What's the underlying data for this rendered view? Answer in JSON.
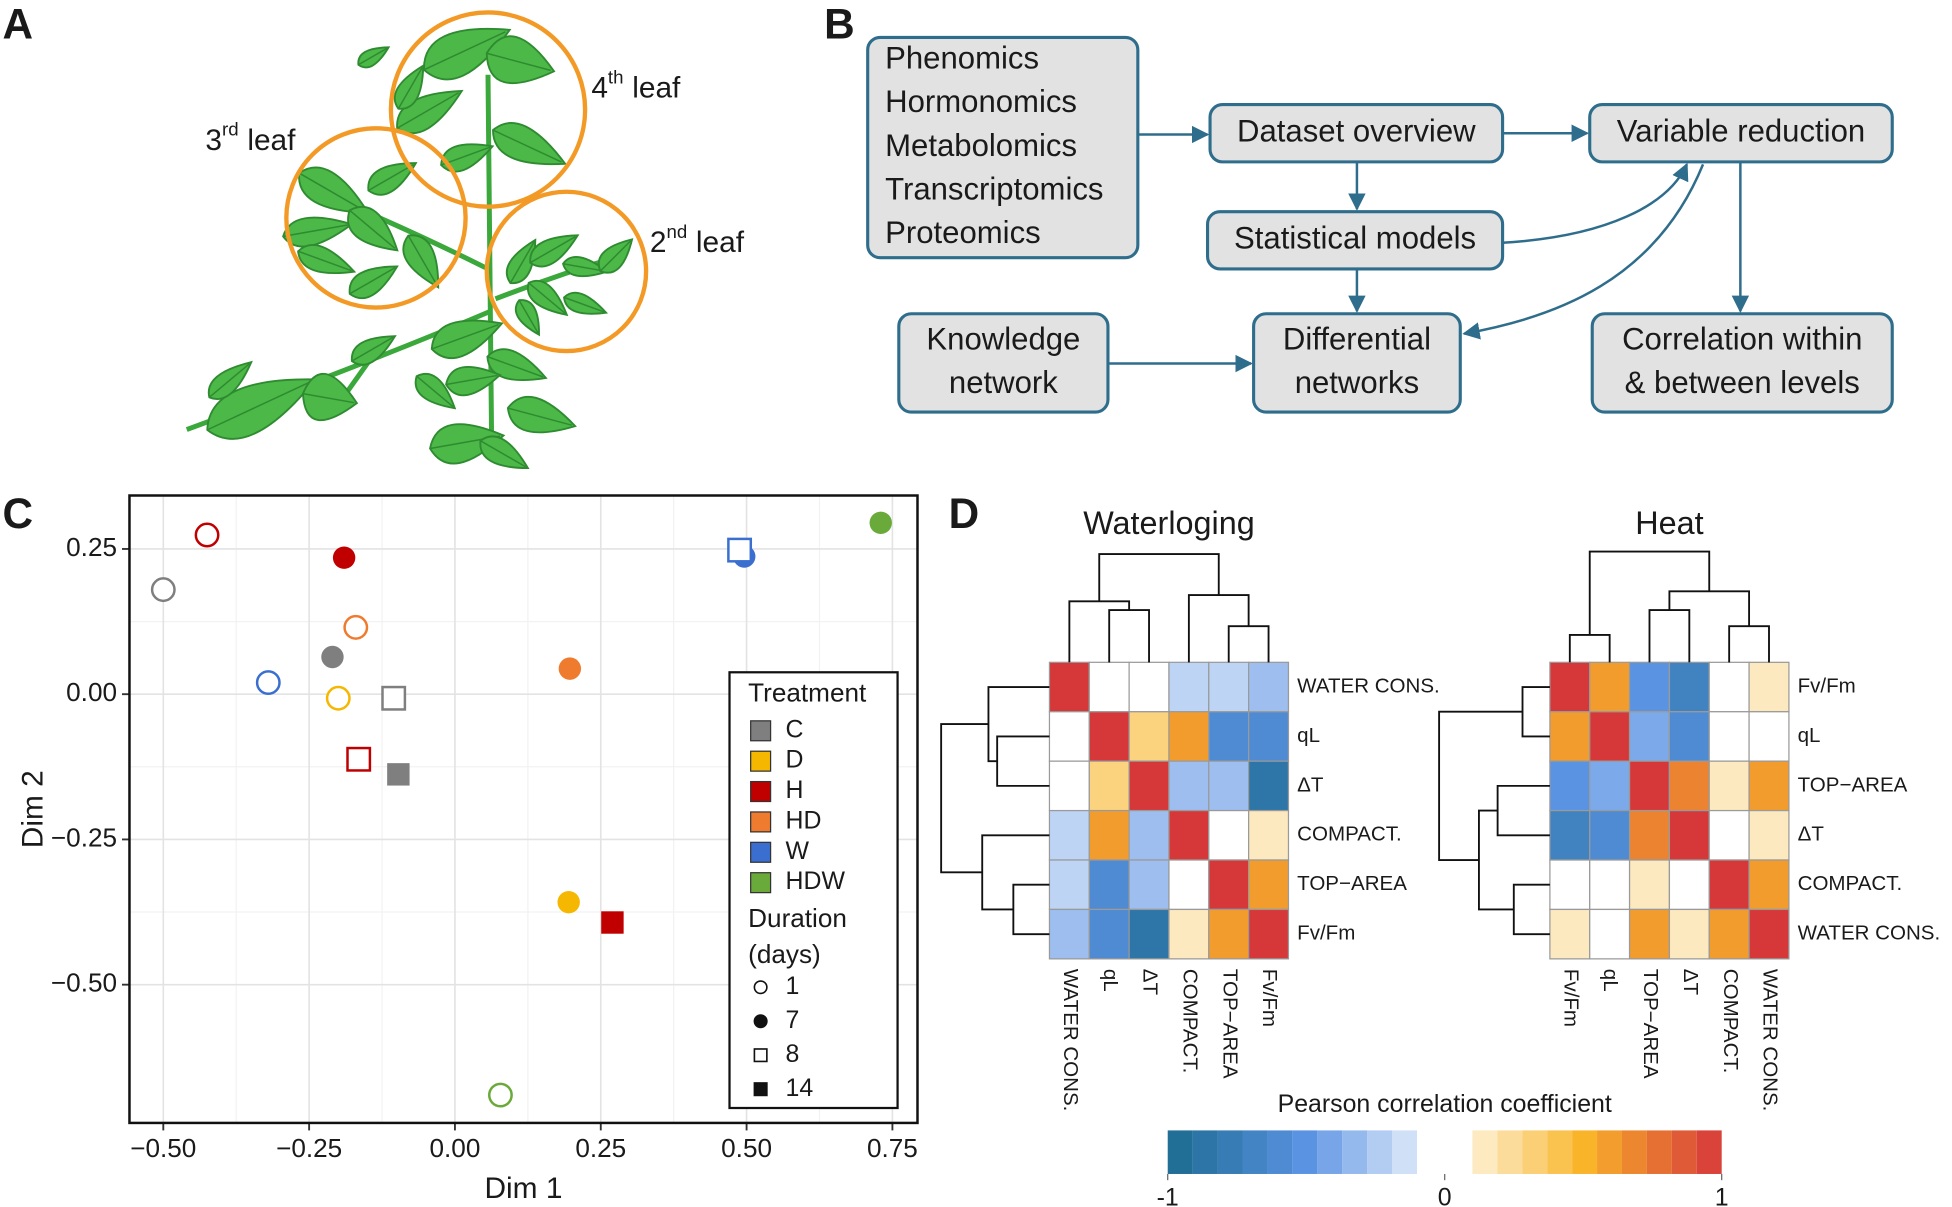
{
  "panel_labels": [
    "A",
    "B",
    "C",
    "D"
  ],
  "plant": {
    "leaf_labels": [
      {
        "number": "4",
        "suffix": "th",
        "word": "leaf"
      },
      {
        "number": "3",
        "suffix": "rd",
        "word": "leaf"
      },
      {
        "number": "2",
        "suffix": "nd",
        "word": "leaf"
      }
    ]
  },
  "flowchart": {
    "nodes": [
      {
        "lines": [
          "Phenomics",
          "Hormonomics",
          "Metabolomics",
          "Transcriptomics",
          "Proteomics"
        ]
      },
      {
        "lines": [
          "Dataset overview"
        ]
      },
      {
        "lines": [
          "Variable reduction"
        ]
      },
      {
        "lines": [
          "Statistical models"
        ]
      },
      {
        "lines": [
          "Knowledge",
          "network"
        ]
      },
      {
        "lines": [
          "Differential",
          "networks"
        ]
      },
      {
        "lines": [
          "Correlation within",
          "& between levels"
        ]
      }
    ]
  },
  "chart_data": [
    {
      "type": "scatter",
      "x_label": "Dim 1",
      "y_label": "Dim 2",
      "xlim": [
        -0.558,
        0.793
      ],
      "ylim": [
        -0.738,
        0.342
      ],
      "xticks": [
        {
          "value": -0.5,
          "label": "−0.50"
        },
        {
          "value": -0.25,
          "label": "−0.25"
        },
        {
          "value": 0,
          "label": "0.00"
        },
        {
          "value": 0.25,
          "label": "0.25"
        },
        {
          "value": 0.5,
          "label": "0.50"
        },
        {
          "value": 0.75,
          "label": "0.75"
        }
      ],
      "yticks": [
        {
          "value": 0.25,
          "label": "0.25"
        },
        {
          "value": 0,
          "label": "0.00"
        },
        {
          "value": -0.25,
          "label": "−0.25"
        },
        {
          "value": -0.5,
          "label": "−0.50"
        }
      ],
      "grid": true,
      "legend_title": "Treatment",
      "duration_title": [
        "Duration",
        "(days)"
      ],
      "durations": [
        1,
        7,
        8,
        14
      ],
      "duration_shapes": [
        "open-circle",
        "filled-circle",
        "open-square",
        "filled-square"
      ],
      "series": [
        {
          "name": "C",
          "color": "#7f7f7f",
          "x": [
            -0.5,
            -0.21,
            -0.105,
            -0.097
          ],
          "y": [
            0.18,
            0.064,
            -0.007,
            -0.138
          ],
          "duration": [
            1,
            7,
            8,
            14
          ]
        },
        {
          "name": "D",
          "color": "#f5b700",
          "x": [
            -0.2,
            0.195
          ],
          "y": [
            -0.007,
            -0.358
          ],
          "duration": [
            1,
            7
          ]
        },
        {
          "name": "H",
          "color": "#c00000",
          "x": [
            -0.425,
            -0.19,
            -0.165,
            0.27
          ],
          "y": [
            0.274,
            0.235,
            -0.112,
            -0.393
          ],
          "duration": [
            1,
            7,
            8,
            14
          ]
        },
        {
          "name": "HD",
          "color": "#ef7b2f",
          "x": [
            -0.17,
            0.197
          ],
          "y": [
            0.115,
            0.044
          ],
          "duration": [
            1,
            7
          ]
        },
        {
          "name": "W",
          "color": "#3a6fd0",
          "x": [
            -0.32,
            0.496,
            0.488
          ],
          "y": [
            0.02,
            0.237,
            0.248
          ],
          "duration": [
            1,
            7,
            8
          ]
        },
        {
          "name": "HDW",
          "color": "#6aaa3a",
          "x": [
            0.078,
            0.73
          ],
          "y": [
            -0.69,
            0.295
          ],
          "duration": [
            1,
            7
          ]
        }
      ]
    },
    {
      "type": "heatmap",
      "title": "Waterloging",
      "rows": [
        "WATER CONS.",
        "qL",
        "ΔT",
        "COMPACT.",
        "TOP−AREA",
        "Fv/Fm"
      ],
      "columns": [
        "WATER CONS.",
        "qL",
        "ΔT",
        "COMPACT.",
        "TOP−AREA",
        "Fv/Fm"
      ],
      "values": [
        [
          1,
          0,
          0,
          -0.2,
          -0.2,
          -0.3
        ],
        [
          0,
          1,
          0.3,
          0.6,
          -0.6,
          -0.6
        ],
        [
          0,
          0.3,
          1,
          -0.3,
          -0.3,
          -0.85
        ],
        [
          -0.2,
          0.6,
          -0.3,
          1,
          0,
          0.15
        ],
        [
          -0.2,
          -0.6,
          -0.3,
          0,
          1,
          0.6
        ],
        [
          -0.3,
          -0.6,
          -0.85,
          0.15,
          0.6,
          1
        ]
      ]
    },
    {
      "type": "heatmap",
      "title": "Heat",
      "rows": [
        "Fv/Fm",
        "qL",
        "TOP−AREA",
        "ΔT",
        "COMPACT.",
        "WATER CONS."
      ],
      "columns": [
        "Fv/Fm",
        "qL",
        "TOP−AREA",
        "ΔT",
        "COMPACT.",
        "WATER CONS."
      ],
      "values": [
        [
          1,
          0.6,
          -0.5,
          -0.7,
          0,
          0.15
        ],
        [
          0.6,
          1,
          -0.4,
          -0.6,
          0,
          0
        ],
        [
          -0.5,
          -0.4,
          1,
          0.7,
          0.15,
          0.6
        ],
        [
          -0.7,
          -0.6,
          0.7,
          1,
          0,
          0.15
        ],
        [
          0,
          0,
          0.15,
          0,
          1,
          0.6
        ],
        [
          0.15,
          0,
          0.6,
          0.15,
          0.6,
          1
        ]
      ]
    }
  ],
  "colorbar": {
    "title": "Pearson correlation coefficient",
    "lim": [
      -1,
      1
    ],
    "ticks": [
      -1,
      0,
      1
    ],
    "colors": [
      "#1b6a8f",
      "#5b93e3",
      "#ffffff",
      "#f9b52a",
      "#d6383a"
    ]
  }
}
